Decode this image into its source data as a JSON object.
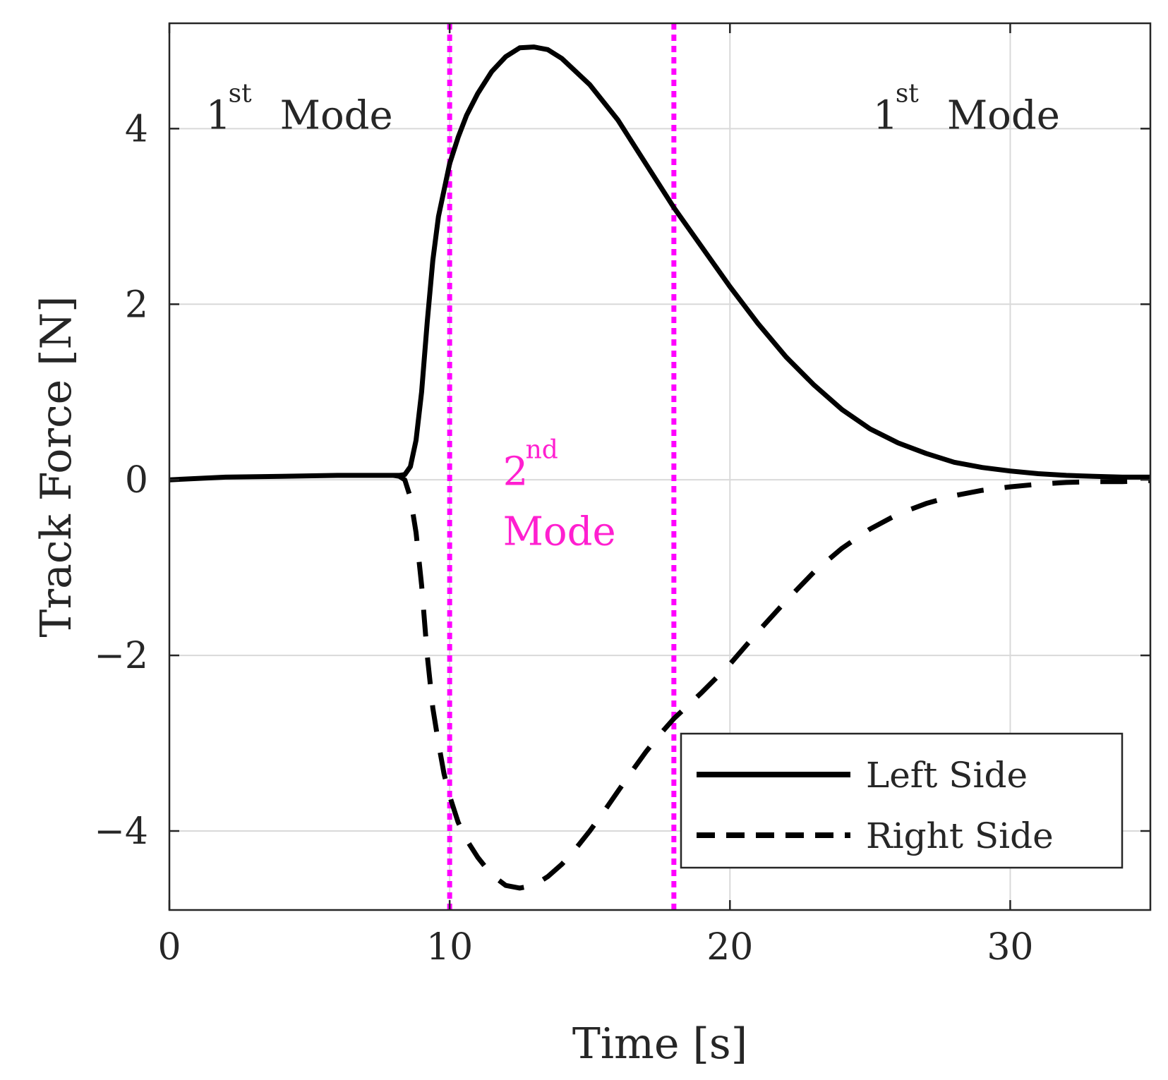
{
  "chart_data": {
    "type": "line",
    "title": "",
    "xlabel": "Time [s]",
    "ylabel": "Track Force [N]",
    "xlim": [
      0,
      35
    ],
    "ylim": [
      -4.9,
      5.2
    ],
    "xticks": [
      0,
      10,
      20,
      30
    ],
    "yticks": [
      -4,
      -2,
      0,
      2,
      4
    ],
    "xtick_labels": [
      "0",
      "10",
      "20",
      "30"
    ],
    "ytick_labels": [
      "−4",
      "−2",
      "0",
      "2",
      "4"
    ],
    "grid": true,
    "legend_position": "bottom-right",
    "series": [
      {
        "name": "Left Side",
        "style": "solid",
        "color": "#000000",
        "x": [
          0,
          2,
          4,
          6,
          8,
          8.2,
          8.4,
          8.6,
          8.8,
          9.0,
          9.2,
          9.4,
          9.6,
          9.8,
          10.0,
          10.3,
          10.6,
          11.0,
          11.5,
          12.0,
          12.5,
          13.0,
          13.5,
          14.0,
          15.0,
          16.0,
          17.0,
          18.0,
          19.0,
          20.0,
          21.0,
          22.0,
          23.0,
          24.0,
          25.0,
          26.0,
          27.0,
          28.0,
          29.0,
          30.0,
          31.0,
          32.0,
          33.0,
          34.0,
          35.0
        ],
        "y": [
          0.0,
          0.03,
          0.04,
          0.05,
          0.05,
          0.05,
          0.06,
          0.15,
          0.45,
          1.0,
          1.8,
          2.5,
          3.0,
          3.3,
          3.6,
          3.9,
          4.15,
          4.4,
          4.65,
          4.82,
          4.92,
          4.93,
          4.9,
          4.8,
          4.5,
          4.1,
          3.6,
          3.1,
          2.65,
          2.2,
          1.78,
          1.4,
          1.08,
          0.8,
          0.58,
          0.42,
          0.3,
          0.2,
          0.14,
          0.1,
          0.07,
          0.05,
          0.04,
          0.03,
          0.03
        ]
      },
      {
        "name": "Right Side",
        "style": "dashed",
        "color": "#000000",
        "x": [
          8.0,
          8.2,
          8.4,
          8.6,
          8.8,
          9.0,
          9.2,
          9.4,
          9.6,
          9.8,
          10.0,
          10.3,
          10.6,
          11.0,
          11.5,
          12.0,
          12.5,
          13.0,
          13.5,
          14.0,
          14.5,
          15.0,
          15.5,
          16.0,
          16.5,
          17.0,
          17.5,
          18.0,
          19.0,
          20.0,
          21.0,
          22.0,
          23.0,
          24.0,
          25.0,
          26.0,
          27.0,
          28.0,
          29.0,
          30.0,
          31.0,
          32.0,
          33.0,
          34.0,
          35.0
        ],
        "y": [
          0.05,
          0.04,
          0.0,
          -0.2,
          -0.6,
          -1.2,
          -2.0,
          -2.6,
          -3.0,
          -3.35,
          -3.6,
          -3.9,
          -4.1,
          -4.3,
          -4.5,
          -4.62,
          -4.65,
          -4.62,
          -4.52,
          -4.38,
          -4.2,
          -4.0,
          -3.78,
          -3.55,
          -3.32,
          -3.1,
          -2.9,
          -2.72,
          -2.42,
          -2.1,
          -1.73,
          -1.38,
          -1.05,
          -0.78,
          -0.56,
          -0.39,
          -0.27,
          -0.18,
          -0.12,
          -0.08,
          -0.05,
          -0.03,
          -0.02,
          -0.02,
          -0.01
        ]
      }
    ],
    "vlines": [
      {
        "x": 10,
        "color": "#ff00ff",
        "style": "dotted"
      },
      {
        "x": 18,
        "color": "#ff00ff",
        "style": "dotted"
      }
    ],
    "annotations": [
      {
        "id": "mode1_left",
        "num": "1",
        "sup": "st",
        "text": "Mode",
        "x": 1.3,
        "y": 4.0,
        "color": "#262626"
      },
      {
        "id": "mode1_right",
        "num": "1",
        "sup": "st",
        "text": "Mode",
        "x": 25.1,
        "y": 4.0,
        "color": "#262626"
      },
      {
        "id": "mode2",
        "num": "2",
        "sup": "nd",
        "text": "Mode",
        "x": 11.9,
        "y": -0.7,
        "color": "#ff1fd0"
      }
    ]
  }
}
